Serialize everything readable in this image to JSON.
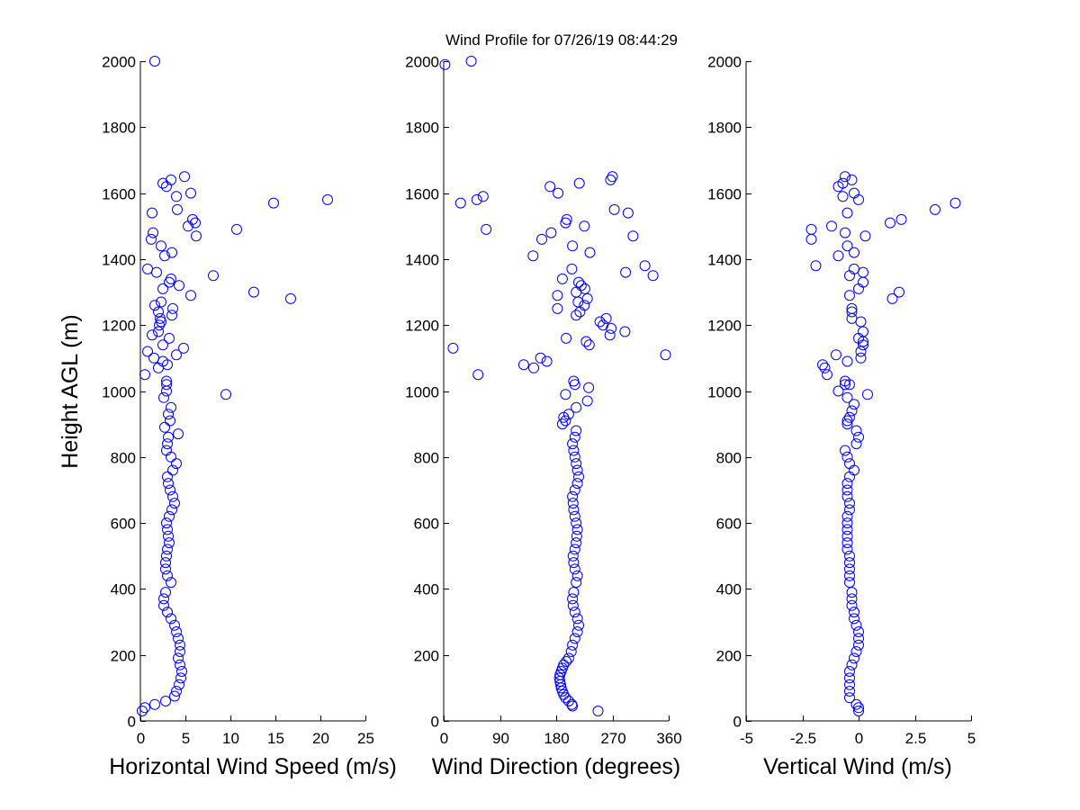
{
  "title": "Wind Profile for  07/26/19 08:44:29",
  "chart_data": [
    {
      "type": "scatter",
      "xlabel": "Horizontal Wind Speed (m/s)",
      "ylabel": "Height AGL (m)",
      "xlim": [
        0,
        25
      ],
      "ylim": [
        0,
        2000
      ],
      "xticks": [
        0,
        5,
        10,
        15,
        20,
        25
      ],
      "xticklabels": [
        "0",
        "5",
        "10",
        "15",
        "20",
        "25"
      ],
      "yticks": [
        0,
        200,
        400,
        600,
        800,
        1000,
        1200,
        1400,
        1600,
        1800,
        2000
      ],
      "yticklabels": [
        "0",
        "200",
        "400",
        "600",
        "800",
        "1000",
        "1200",
        "1400",
        "1600",
        "1800",
        "2000"
      ],
      "marker_color": "#0000ff",
      "grid": false,
      "points": [
        [
          0.2,
          30
        ],
        [
          0.5,
          40
        ],
        [
          1.6,
          50
        ],
        [
          2.8,
          60
        ],
        [
          3.8,
          75
        ],
        [
          4.0,
          90
        ],
        [
          4.3,
          110
        ],
        [
          4.5,
          130
        ],
        [
          4.6,
          150
        ],
        [
          4.4,
          170
        ],
        [
          4.2,
          190
        ],
        [
          4.4,
          210
        ],
        [
          4.4,
          230
        ],
        [
          4.2,
          250
        ],
        [
          4.0,
          270
        ],
        [
          3.8,
          290
        ],
        [
          3.4,
          310
        ],
        [
          3.0,
          330
        ],
        [
          2.6,
          350
        ],
        [
          2.6,
          370
        ],
        [
          2.8,
          390
        ],
        [
          3.4,
          420
        ],
        [
          3.0,
          440
        ],
        [
          2.8,
          460
        ],
        [
          2.8,
          480
        ],
        [
          2.9,
          500
        ],
        [
          3.0,
          520
        ],
        [
          3.2,
          540
        ],
        [
          3.1,
          560
        ],
        [
          3.0,
          580
        ],
        [
          2.9,
          600
        ],
        [
          3.2,
          620
        ],
        [
          3.5,
          640
        ],
        [
          3.8,
          660
        ],
        [
          3.6,
          680
        ],
        [
          3.3,
          700
        ],
        [
          3.1,
          720
        ],
        [
          3.0,
          740
        ],
        [
          3.6,
          760
        ],
        [
          4.0,
          780
        ],
        [
          3.4,
          800
        ],
        [
          2.9,
          820
        ],
        [
          3.0,
          840
        ],
        [
          3.1,
          860
        ],
        [
          4.2,
          870
        ],
        [
          2.7,
          890
        ],
        [
          3.3,
          910
        ],
        [
          3.1,
          930
        ],
        [
          3.4,
          950
        ],
        [
          2.6,
          980
        ],
        [
          2.9,
          1000
        ],
        [
          2.9,
          1020
        ],
        [
          2.9,
          1030
        ],
        [
          9.5,
          990
        ],
        [
          0.5,
          1050
        ],
        [
          2.0,
          1070
        ],
        [
          3.0,
          1080
        ],
        [
          2.5,
          1090
        ],
        [
          1.5,
          1100
        ],
        [
          4.0,
          1110
        ],
        [
          0.8,
          1120
        ],
        [
          4.8,
          1130
        ],
        [
          2.5,
          1140
        ],
        [
          3.2,
          1160
        ],
        [
          1.3,
          1170
        ],
        [
          2.0,
          1180
        ],
        [
          2.1,
          1200
        ],
        [
          2.3,
          1210
        ],
        [
          2.2,
          1220
        ],
        [
          3.5,
          1230
        ],
        [
          2.0,
          1240
        ],
        [
          3.6,
          1250
        ],
        [
          1.6,
          1260
        ],
        [
          2.3,
          1270
        ],
        [
          16.7,
          1280
        ],
        [
          5.6,
          1290
        ],
        [
          12.6,
          1300
        ],
        [
          2.5,
          1310
        ],
        [
          4.3,
          1320
        ],
        [
          3.2,
          1330
        ],
        [
          3.4,
          1340
        ],
        [
          8.1,
          1350
        ],
        [
          1.8,
          1360
        ],
        [
          0.8,
          1370
        ],
        [
          2.7,
          1410
        ],
        [
          3.5,
          1420
        ],
        [
          2.3,
          1440
        ],
        [
          1.2,
          1460
        ],
        [
          6.2,
          1470
        ],
        [
          1.4,
          1480
        ],
        [
          10.7,
          1490
        ],
        [
          5.3,
          1500
        ],
        [
          6.1,
          1510
        ],
        [
          5.8,
          1520
        ],
        [
          1.3,
          1540
        ],
        [
          4.1,
          1550
        ],
        [
          14.8,
          1570
        ],
        [
          20.8,
          1580
        ],
        [
          4.0,
          1590
        ],
        [
          5.6,
          1600
        ],
        [
          2.9,
          1620
        ],
        [
          2.5,
          1630
        ],
        [
          3.4,
          1640
        ],
        [
          4.9,
          1650
        ],
        [
          1.6,
          2000
        ]
      ]
    },
    {
      "type": "scatter",
      "xlabel": "Wind Direction (degrees)",
      "ylabel": "",
      "xlim": [
        0,
        360
      ],
      "ylim": [
        0,
        2000
      ],
      "xticks": [
        0,
        90,
        180,
        270,
        360
      ],
      "xticklabels": [
        "0",
        "90",
        "180",
        "270",
        "360"
      ],
      "yticks": [
        0,
        200,
        400,
        600,
        800,
        1000,
        1200,
        1400,
        1600,
        1800,
        2000
      ],
      "yticklabels": [
        "0",
        "200",
        "400",
        "600",
        "800",
        "1000",
        "1200",
        "1400",
        "1600",
        "1800",
        "2000"
      ],
      "marker_color": "#0000ff",
      "grid": false,
      "points": [
        [
          247,
          30
        ],
        [
          206,
          45
        ],
        [
          205,
          50
        ],
        [
          200,
          60
        ],
        [
          195,
          70
        ],
        [
          192,
          80
        ],
        [
          190,
          90
        ],
        [
          188,
          100
        ],
        [
          187,
          110
        ],
        [
          186,
          120
        ],
        [
          185,
          130
        ],
        [
          186,
          140
        ],
        [
          188,
          150
        ],
        [
          190,
          160
        ],
        [
          192,
          170
        ],
        [
          196,
          180
        ],
        [
          200,
          190
        ],
        [
          204,
          210
        ],
        [
          206,
          230
        ],
        [
          210,
          250
        ],
        [
          214,
          270
        ],
        [
          216,
          290
        ],
        [
          214,
          310
        ],
        [
          210,
          330
        ],
        [
          207,
          350
        ],
        [
          206,
          370
        ],
        [
          208,
          390
        ],
        [
          212,
          420
        ],
        [
          214,
          440
        ],
        [
          210,
          460
        ],
        [
          208,
          480
        ],
        [
          207,
          500
        ],
        [
          210,
          520
        ],
        [
          212,
          540
        ],
        [
          213,
          560
        ],
        [
          214,
          580
        ],
        [
          212,
          600
        ],
        [
          210,
          620
        ],
        [
          208,
          640
        ],
        [
          207,
          660
        ],
        [
          206,
          680
        ],
        [
          210,
          700
        ],
        [
          214,
          720
        ],
        [
          216,
          740
        ],
        [
          214,
          760
        ],
        [
          212,
          780
        ],
        [
          210,
          800
        ],
        [
          208,
          820
        ],
        [
          206,
          840
        ],
        [
          210,
          860
        ],
        [
          212,
          880
        ],
        [
          190,
          900
        ],
        [
          195,
          910
        ],
        [
          192,
          920
        ],
        [
          200,
          930
        ],
        [
          212,
          950
        ],
        [
          230,
          970
        ],
        [
          195,
          990
        ],
        [
          232,
          1010
        ],
        [
          208,
          1030
        ],
        [
          210,
          1020
        ],
        [
          55,
          1050
        ],
        [
          144,
          1070
        ],
        [
          128,
          1080
        ],
        [
          165,
          1090
        ],
        [
          155,
          1100
        ],
        [
          355,
          1110
        ],
        [
          15,
          1130
        ],
        [
          233,
          1140
        ],
        [
          228,
          1150
        ],
        [
          196,
          1160
        ],
        [
          266,
          1170
        ],
        [
          290,
          1180
        ],
        [
          268,
          1190
        ],
        [
          255,
          1200
        ],
        [
          250,
          1210
        ],
        [
          260,
          1220
        ],
        [
          212,
          1230
        ],
        [
          218,
          1240
        ],
        [
          182,
          1250
        ],
        [
          225,
          1260
        ],
        [
          215,
          1270
        ],
        [
          230,
          1280
        ],
        [
          182,
          1290
        ],
        [
          212,
          1300
        ],
        [
          226,
          1310
        ],
        [
          220,
          1320
        ],
        [
          216,
          1330
        ],
        [
          190,
          1340
        ],
        [
          335,
          1350
        ],
        [
          291,
          1360
        ],
        [
          205,
          1370
        ],
        [
          322,
          1380
        ],
        [
          143,
          1410
        ],
        [
          234,
          1420
        ],
        [
          206,
          1440
        ],
        [
          157,
          1460
        ],
        [
          303,
          1470
        ],
        [
          172,
          1480
        ],
        [
          68,
          1490
        ],
        [
          225,
          1500
        ],
        [
          195,
          1510
        ],
        [
          197,
          1520
        ],
        [
          295,
          1540
        ],
        [
          273,
          1550
        ],
        [
          27,
          1570
        ],
        [
          53,
          1580
        ],
        [
          63,
          1590
        ],
        [
          183,
          1600
        ],
        [
          170,
          1620
        ],
        [
          217,
          1630
        ],
        [
          267,
          1640
        ],
        [
          270,
          1650
        ],
        [
          2,
          1990
        ],
        [
          44,
          2000
        ]
      ]
    },
    {
      "type": "scatter",
      "xlabel": "Vertical Wind (m/s)",
      "ylabel": "",
      "xlim": [
        -5,
        5
      ],
      "ylim": [
        0,
        2000
      ],
      "xticks": [
        -5,
        -2.5,
        0,
        2.5,
        5
      ],
      "xticklabels": [
        "-5",
        "-2.5",
        "0",
        "2.5",
        "5"
      ],
      "yticks": [
        0,
        200,
        400,
        600,
        800,
        1000,
        1200,
        1400,
        1600,
        1800,
        2000
      ],
      "yticklabels": [
        "0",
        "200",
        "400",
        "600",
        "800",
        "1000",
        "1200",
        "1400",
        "1600",
        "1800",
        "2000"
      ],
      "marker_color": "#0000ff",
      "grid": false,
      "points": [
        [
          0.0,
          30
        ],
        [
          0.0,
          40
        ],
        [
          -0.1,
          50
        ],
        [
          -0.4,
          70
        ],
        [
          -0.4,
          90
        ],
        [
          -0.4,
          110
        ],
        [
          -0.4,
          130
        ],
        [
          -0.4,
          150
        ],
        [
          -0.3,
          170
        ],
        [
          -0.2,
          190
        ],
        [
          -0.1,
          210
        ],
        [
          0.0,
          230
        ],
        [
          0.0,
          250
        ],
        [
          0.0,
          270
        ],
        [
          -0.1,
          290
        ],
        [
          -0.2,
          310
        ],
        [
          -0.2,
          330
        ],
        [
          -0.3,
          350
        ],
        [
          -0.3,
          370
        ],
        [
          -0.3,
          390
        ],
        [
          -0.4,
          420
        ],
        [
          -0.4,
          440
        ],
        [
          -0.4,
          460
        ],
        [
          -0.4,
          480
        ],
        [
          -0.4,
          500
        ],
        [
          -0.5,
          520
        ],
        [
          -0.5,
          540
        ],
        [
          -0.5,
          560
        ],
        [
          -0.5,
          580
        ],
        [
          -0.5,
          600
        ],
        [
          -0.5,
          620
        ],
        [
          -0.4,
          640
        ],
        [
          -0.4,
          660
        ],
        [
          -0.5,
          680
        ],
        [
          -0.5,
          700
        ],
        [
          -0.5,
          720
        ],
        [
          -0.4,
          740
        ],
        [
          -0.2,
          760
        ],
        [
          -0.4,
          780
        ],
        [
          -0.5,
          800
        ],
        [
          -0.6,
          820
        ],
        [
          -0.1,
          840
        ],
        [
          0.0,
          860
        ],
        [
          -0.1,
          880
        ],
        [
          -0.5,
          900
        ],
        [
          -0.5,
          910
        ],
        [
          -0.4,
          920
        ],
        [
          -0.3,
          940
        ],
        [
          -0.2,
          960
        ],
        [
          -0.5,
          980
        ],
        [
          0.4,
          990
        ],
        [
          -0.9,
          1000
        ],
        [
          -0.6,
          1020
        ],
        [
          -0.4,
          1020
        ],
        [
          -0.6,
          1030
        ],
        [
          -1.4,
          1050
        ],
        [
          -1.5,
          1070
        ],
        [
          -1.6,
          1080
        ],
        [
          -0.5,
          1090
        ],
        [
          0.1,
          1100
        ],
        [
          -1.0,
          1110
        ],
        [
          0.1,
          1120
        ],
        [
          0.2,
          1140
        ],
        [
          0.2,
          1150
        ],
        [
          0.0,
          1160
        ],
        [
          0.2,
          1180
        ],
        [
          0.1,
          1210
        ],
        [
          -0.3,
          1220
        ],
        [
          -0.3,
          1240
        ],
        [
          -0.3,
          1250
        ],
        [
          1.5,
          1280
        ],
        [
          -0.4,
          1290
        ],
        [
          1.8,
          1300
        ],
        [
          0.0,
          1310
        ],
        [
          0.2,
          1330
        ],
        [
          -0.4,
          1350
        ],
        [
          0.2,
          1360
        ],
        [
          -0.2,
          1370
        ],
        [
          -1.9,
          1380
        ],
        [
          -0.9,
          1410
        ],
        [
          -0.2,
          1420
        ],
        [
          -0.5,
          1440
        ],
        [
          -2.1,
          1460
        ],
        [
          0.3,
          1470
        ],
        [
          -0.6,
          1480
        ],
        [
          -2.1,
          1490
        ],
        [
          -1.2,
          1500
        ],
        [
          1.4,
          1510
        ],
        [
          1.9,
          1520
        ],
        [
          -0.5,
          1540
        ],
        [
          3.4,
          1550
        ],
        [
          4.3,
          1570
        ],
        [
          0.0,
          1580
        ],
        [
          -0.7,
          1590
        ],
        [
          -0.2,
          1600
        ],
        [
          -0.9,
          1620
        ],
        [
          -0.7,
          1630
        ],
        [
          -0.3,
          1640
        ],
        [
          -0.6,
          1650
        ]
      ]
    }
  ]
}
